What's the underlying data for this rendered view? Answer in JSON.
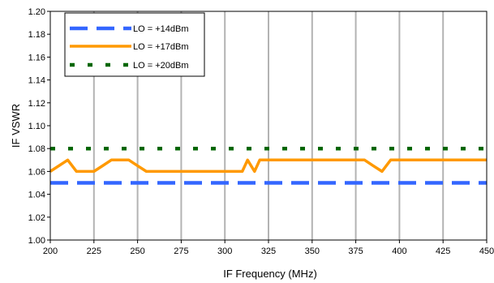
{
  "chart_data": {
    "type": "line",
    "xlabel": "IF Frequency (MHz)",
    "ylabel": "IF VSWR",
    "xlim": [
      200,
      450
    ],
    "ylim": [
      1.0,
      1.2
    ],
    "xticks": [
      "200",
      "225",
      "250",
      "275",
      "300",
      "325",
      "350",
      "375",
      "400",
      "425",
      "450"
    ],
    "yticks": [
      "1.00",
      "1.02",
      "1.04",
      "1.06",
      "1.08",
      "1.10",
      "1.12",
      "1.14",
      "1.16",
      "1.18",
      "1.20"
    ],
    "grid": {
      "vertical": true,
      "horizontal": false
    },
    "legend_position": "top-left",
    "series": [
      {
        "name": "LO = +14dBm",
        "color": "#3366FF",
        "style": "dashed",
        "x": [
          200,
          450
        ],
        "y": [
          1.05,
          1.05
        ]
      },
      {
        "name": "LO = +17dBm",
        "color": "#FF9900",
        "style": "solid",
        "x": [
          200,
          210,
          215,
          220,
          225,
          230,
          235,
          240,
          245,
          250,
          255,
          260,
          300,
          310,
          313,
          317,
          320,
          330,
          380,
          385,
          390,
          395,
          400,
          450
        ],
        "y": [
          1.06,
          1.07,
          1.06,
          1.06,
          1.06,
          1.065,
          1.07,
          1.07,
          1.07,
          1.065,
          1.06,
          1.06,
          1.06,
          1.06,
          1.07,
          1.06,
          1.07,
          1.07,
          1.07,
          1.065,
          1.06,
          1.07,
          1.07,
          1.07
        ]
      },
      {
        "name": "LO = +20dBm",
        "color": "#006600",
        "style": "dotted",
        "x": [
          200,
          450
        ],
        "y": [
          1.08,
          1.08
        ]
      }
    ]
  }
}
